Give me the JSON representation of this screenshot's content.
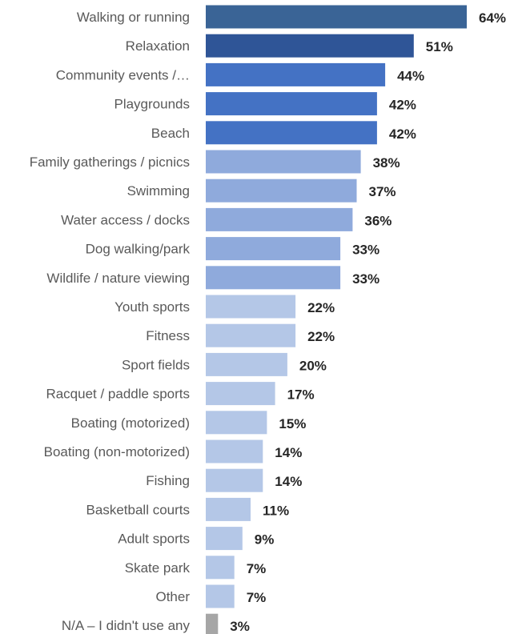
{
  "chart_data": {
    "type": "bar",
    "orientation": "horizontal",
    "categories": [
      "Walking or running",
      "Relaxation",
      "Community events /…",
      "Playgrounds",
      "Beach",
      "Family gatherings / picnics",
      "Swimming",
      "Water access / docks",
      "Dog walking/park",
      "Wildlife / nature viewing",
      "Youth sports",
      "Fitness",
      "Sport fields",
      "Racquet / paddle sports",
      "Boating (motorized)",
      "Boating (non-motorized)",
      "Fishing",
      "Basketball courts",
      "Adult sports",
      "Skate park",
      "Other",
      "N/A – I didn't use any"
    ],
    "values": [
      64,
      51,
      44,
      42,
      42,
      38,
      37,
      36,
      33,
      33,
      22,
      22,
      20,
      17,
      15,
      14,
      14,
      11,
      9,
      7,
      7,
      3
    ],
    "value_labels": [
      "64%",
      "51%",
      "44%",
      "42%",
      "42%",
      "38%",
      "37%",
      "36%",
      "33%",
      "33%",
      "22%",
      "22%",
      "20%",
      "17%",
      "15%",
      "14%",
      "14%",
      "11%",
      "9%",
      "7%",
      "7%",
      "3%"
    ],
    "bar_colors": [
      "#3a6496",
      "#2f5597",
      "#4472c4",
      "#4472c4",
      "#4472c4",
      "#8faadc",
      "#8faadc",
      "#8faadc",
      "#8faadc",
      "#8faadc",
      "#b4c7e7",
      "#b4c7e7",
      "#b4c7e7",
      "#b4c7e7",
      "#b4c7e7",
      "#b4c7e7",
      "#b4c7e7",
      "#b4c7e7",
      "#b4c7e7",
      "#b4c7e7",
      "#b4c7e7",
      "#a6a6a6"
    ],
    "xlim": [
      0,
      64
    ],
    "grid": false,
    "legend": "none",
    "title": "",
    "xlabel": "",
    "ylabel": ""
  }
}
